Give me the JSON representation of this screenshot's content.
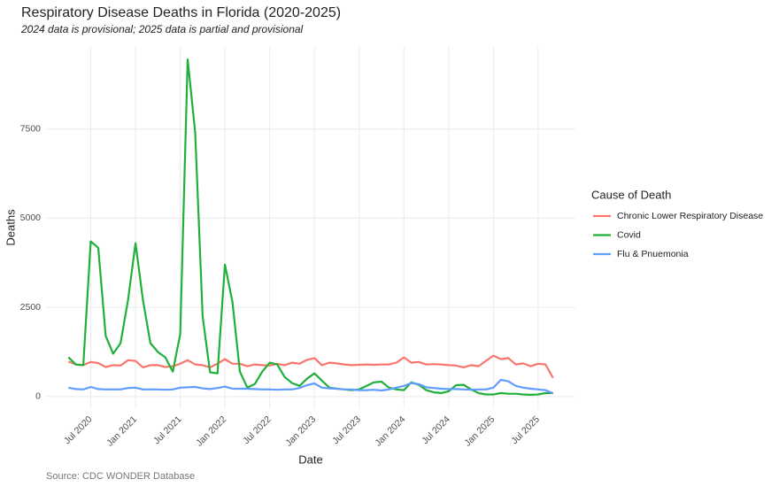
{
  "chart_data": {
    "type": "line",
    "title": "Respiratory Disease Deaths in Florida (2020-2025)",
    "subtitle": "2024 data is provisional; 2025 data is partial and provisional",
    "x_label": "Date",
    "y_label": "Deaths",
    "caption": "Source: CDC WONDER Database",
    "legend_title": "Cause of Death",
    "legend_position": "right",
    "grid": true,
    "x": [
      "2020-04",
      "2020-05",
      "2020-06",
      "2020-07",
      "2020-08",
      "2020-09",
      "2020-10",
      "2020-11",
      "2020-12",
      "2021-01",
      "2021-02",
      "2021-03",
      "2021-04",
      "2021-05",
      "2021-06",
      "2021-07",
      "2021-08",
      "2021-09",
      "2021-10",
      "2021-11",
      "2021-12",
      "2022-01",
      "2022-02",
      "2022-03",
      "2022-04",
      "2022-05",
      "2022-06",
      "2022-07",
      "2022-08",
      "2022-09",
      "2022-10",
      "2022-11",
      "2022-12",
      "2023-01",
      "2023-02",
      "2023-03",
      "2023-04",
      "2023-05",
      "2023-06",
      "2023-07",
      "2023-08",
      "2023-09",
      "2023-10",
      "2023-11",
      "2023-12",
      "2024-01",
      "2024-02",
      "2024-03",
      "2024-04",
      "2024-05",
      "2024-06",
      "2024-07",
      "2024-08",
      "2024-09",
      "2024-10",
      "2024-11",
      "2024-12",
      "2025-01",
      "2025-02",
      "2025-03",
      "2025-04",
      "2025-05",
      "2025-06",
      "2025-07",
      "2025-08",
      "2025-09"
    ],
    "series": [
      {
        "name": "Chronic Lower Respiratory Disease",
        "color": "#F8766D",
        "values": [
          980,
          900,
          880,
          970,
          940,
          830,
          880,
          870,
          1020,
          1000,
          820,
          880,
          880,
          830,
          850,
          920,
          1020,
          900,
          880,
          820,
          920,
          1050,
          920,
          920,
          850,
          900,
          880,
          870,
          920,
          880,
          950,
          920,
          1030,
          1080,
          880,
          950,
          930,
          900,
          880,
          890,
          900,
          890,
          900,
          900,
          950,
          1100,
          950,
          970,
          900,
          910,
          900,
          880,
          870,
          820,
          880,
          850,
          1000,
          1150,
          1050,
          1080,
          900,
          930,
          850,
          920,
          900,
          520
        ]
      },
      {
        "name": "Covid",
        "color": "#1FB03A",
        "values": [
          1100,
          900,
          880,
          4350,
          4170,
          1700,
          1200,
          1500,
          2700,
          4300,
          2700,
          1500,
          1250,
          1100,
          700,
          1750,
          9450,
          7400,
          2250,
          680,
          650,
          3700,
          2650,
          700,
          250,
          350,
          700,
          950,
          900,
          550,
          380,
          300,
          500,
          650,
          450,
          250,
          220,
          200,
          180,
          200,
          300,
          400,
          420,
          250,
          200,
          180,
          400,
          330,
          180,
          120,
          100,
          150,
          320,
          330,
          200,
          100,
          60,
          60,
          100,
          80,
          80,
          60,
          50,
          60,
          100,
          100
        ]
      },
      {
        "name": "Flu & Pnuemonia",
        "color": "#619CFF",
        "values": [
          250,
          210,
          200,
          270,
          210,
          200,
          200,
          200,
          240,
          250,
          200,
          200,
          200,
          190,
          200,
          250,
          260,
          270,
          230,
          210,
          240,
          280,
          220,
          220,
          220,
          210,
          200,
          200,
          190,
          200,
          200,
          240,
          320,
          370,
          250,
          230,
          220,
          200,
          200,
          180,
          180,
          190,
          170,
          200,
          250,
          300,
          380,
          350,
          260,
          240,
          220,
          210,
          210,
          200,
          190,
          200,
          200,
          250,
          470,
          430,
          300,
          250,
          220,
          200,
          180,
          90
        ]
      }
    ],
    "xlim": [
      "2020-01",
      "2025-12"
    ],
    "xticks": [
      {
        "value": "2020-07",
        "label": "Jul 2020"
      },
      {
        "value": "2021-01",
        "label": "Jan 2021"
      },
      {
        "value": "2021-07",
        "label": "Jul 2021"
      },
      {
        "value": "2022-01",
        "label": "Jan 2022"
      },
      {
        "value": "2022-07",
        "label": "Jul 2022"
      },
      {
        "value": "2023-01",
        "label": "Jan 2023"
      },
      {
        "value": "2023-07",
        "label": "Jul 2023"
      },
      {
        "value": "2024-01",
        "label": "Jan 2024"
      },
      {
        "value": "2024-07",
        "label": "Jul 2024"
      },
      {
        "value": "2025-01",
        "label": "Jan 2025"
      },
      {
        "value": "2025-07",
        "label": "Jul 2025"
      }
    ],
    "ylim": [
      -350,
      9800
    ],
    "yticks": [
      0,
      2500,
      5000,
      7500
    ]
  }
}
